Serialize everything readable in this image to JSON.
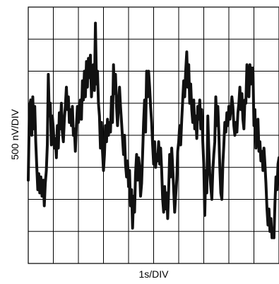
{
  "chart_data": {
    "type": "line",
    "xlabel": "1s/DIV",
    "ylabel": "500 nV/DIV",
    "x_divisions": 10,
    "y_divisions": 8,
    "xlim": [
      0,
      10
    ],
    "ylim": [
      -4,
      4
    ],
    "x_unit": "s",
    "y_unit": "nV",
    "x_scale": "1s per division",
    "y_scale": "500 nV per division",
    "grid": true,
    "line_color": "#111111",
    "series": [
      {
        "values": [
          [
            0.0,
            -1.4
          ],
          [
            0.05,
            0.9
          ],
          [
            0.1,
            1.1
          ],
          [
            0.14,
            0.0
          ],
          [
            0.18,
            1.2
          ],
          [
            0.22,
            0.2
          ],
          [
            0.26,
            0.9
          ],
          [
            0.3,
            -0.2
          ],
          [
            0.34,
            -1.0
          ],
          [
            0.38,
            -1.7
          ],
          [
            0.42,
            -1.2
          ],
          [
            0.46,
            -1.8
          ],
          [
            0.5,
            -1.3
          ],
          [
            0.55,
            -1.9
          ],
          [
            0.6,
            -1.4
          ],
          [
            0.64,
            -2.2
          ],
          [
            0.68,
            -1.5
          ],
          [
            0.72,
            -1.1
          ],
          [
            0.76,
            -0.3
          ],
          [
            0.8,
            1.9
          ],
          [
            0.84,
            0.6
          ],
          [
            0.88,
            1.0
          ],
          [
            0.92,
            -0.3
          ],
          [
            0.96,
            0.6
          ],
          [
            1.0,
            0.2
          ],
          [
            1.04,
            -0.4
          ],
          [
            1.08,
            -0.1
          ],
          [
            1.12,
            -0.7
          ],
          [
            1.16,
            0.3
          ],
          [
            1.2,
            -0.4
          ],
          [
            1.24,
            0.7
          ],
          [
            1.28,
            0.2
          ],
          [
            1.32,
            1.0
          ],
          [
            1.36,
            0.1
          ],
          [
            1.4,
            -0.2
          ],
          [
            1.44,
            0.5
          ],
          [
            1.48,
            0.9
          ],
          [
            1.52,
            1.5
          ],
          [
            1.56,
            0.8
          ],
          [
            1.6,
            1.2
          ],
          [
            1.64,
            0.4
          ],
          [
            1.68,
            0.8
          ],
          [
            1.72,
            0.3
          ],
          [
            1.76,
            0.9
          ],
          [
            1.8,
            0.0
          ],
          [
            1.84,
            0.2
          ],
          [
            1.88,
            -0.5
          ],
          [
            1.92,
            0.3
          ],
          [
            1.96,
            0.9
          ],
          [
            2.0,
            0.4
          ],
          [
            2.04,
            0.6
          ],
          [
            2.08,
            1.1
          ],
          [
            2.12,
            0.5
          ],
          [
            2.16,
            1.7
          ],
          [
            2.2,
            1.1
          ],
          [
            2.24,
            2.0
          ],
          [
            2.28,
            1.2
          ],
          [
            2.32,
            2.3
          ],
          [
            2.36,
            1.5
          ],
          [
            2.4,
            2.4
          ],
          [
            2.44,
            1.8
          ],
          [
            2.48,
            2.5
          ],
          [
            2.52,
            1.2
          ],
          [
            2.56,
            1.8
          ],
          [
            2.6,
            2.2
          ],
          [
            2.64,
            1.4
          ],
          [
            2.68,
            3.5
          ],
          [
            2.72,
            1.6
          ],
          [
            2.76,
            2.0
          ],
          [
            2.8,
            1.0
          ],
          [
            2.84,
            0.6
          ],
          [
            2.88,
            -0.4
          ],
          [
            2.92,
            0.4
          ],
          [
            2.96,
            -0.5
          ],
          [
            3.0,
            -1.1
          ],
          [
            3.04,
            -0.6
          ],
          [
            3.08,
            0.3
          ],
          [
            3.12,
            -0.2
          ],
          [
            3.16,
            0.5
          ],
          [
            3.2,
            0.0
          ],
          [
            3.24,
            0.4
          ],
          [
            3.28,
            0.1
          ],
          [
            3.32,
            1.2
          ],
          [
            3.36,
            0.4
          ],
          [
            3.4,
            2.2
          ],
          [
            3.44,
            1.3
          ],
          [
            3.48,
            1.9
          ],
          [
            3.52,
            0.9
          ],
          [
            3.56,
            0.3
          ],
          [
            3.6,
            1.0
          ],
          [
            3.64,
            1.5
          ],
          [
            3.68,
            0.9
          ],
          [
            3.72,
            0.4
          ],
          [
            3.76,
            -0.1
          ],
          [
            3.8,
            -0.6
          ],
          [
            3.84,
            0.0
          ],
          [
            3.88,
            -0.9
          ],
          [
            3.92,
            -1.3
          ],
          [
            3.96,
            -0.8
          ],
          [
            4.0,
            -1.6
          ],
          [
            4.04,
            -1.1
          ],
          [
            4.08,
            -2.2
          ],
          [
            4.12,
            -1.7
          ],
          [
            4.16,
            -2.9
          ],
          [
            4.2,
            -1.9
          ],
          [
            4.24,
            -2.4
          ],
          [
            4.28,
            -1.2
          ],
          [
            4.32,
            -0.6
          ],
          [
            4.36,
            -1.4
          ],
          [
            4.4,
            -0.7
          ],
          [
            4.44,
            -1.0
          ],
          [
            4.48,
            -1.9
          ],
          [
            4.52,
            -1.5
          ],
          [
            4.56,
            -0.6
          ],
          [
            4.6,
            0.4
          ],
          [
            4.64,
            1.1
          ],
          [
            4.68,
            0.1
          ],
          [
            4.72,
            2.0
          ],
          [
            4.76,
            1.2
          ],
          [
            4.8,
            2.0
          ],
          [
            4.84,
            1.5
          ],
          [
            4.88,
            0.9
          ],
          [
            4.92,
            0.4
          ],
          [
            4.96,
            -0.3
          ],
          [
            5.0,
            -0.9
          ],
          [
            5.04,
            -0.2
          ],
          [
            5.08,
            -1.0
          ],
          [
            5.12,
            -0.6
          ],
          [
            5.16,
            -0.8
          ],
          [
            5.2,
            -0.2
          ],
          [
            5.24,
            -0.9
          ],
          [
            5.28,
            -0.4
          ],
          [
            5.32,
            -1.1
          ],
          [
            5.36,
            -2.0
          ],
          [
            5.4,
            -2.4
          ],
          [
            5.44,
            -1.6
          ],
          [
            5.48,
            -2.3
          ],
          [
            5.52,
            -1.8
          ],
          [
            5.56,
            -2.6
          ],
          [
            5.6,
            -1.7
          ],
          [
            5.64,
            -0.6
          ],
          [
            5.68,
            -1.3
          ],
          [
            5.72,
            -0.4
          ],
          [
            5.76,
            -1.0
          ],
          [
            5.8,
            -1.7
          ],
          [
            5.84,
            -2.4
          ],
          [
            5.88,
            -1.9
          ],
          [
            5.92,
            -1.4
          ],
          [
            5.96,
            -0.5
          ],
          [
            6.0,
            -0.2
          ],
          [
            6.04,
            0.3
          ],
          [
            6.08,
            -0.3
          ],
          [
            6.12,
            0.5
          ],
          [
            6.16,
            1.1
          ],
          [
            6.2,
            1.7
          ],
          [
            6.24,
            1.2
          ],
          [
            6.28,
            2.0
          ],
          [
            6.32,
            2.6
          ],
          [
            6.36,
            1.5
          ],
          [
            6.4,
            2.2
          ],
          [
            6.44,
            1.0
          ],
          [
            6.48,
            1.6
          ],
          [
            6.52,
            0.8
          ],
          [
            6.56,
            0.4
          ],
          [
            6.6,
            1.1
          ],
          [
            6.64,
            0.2
          ],
          [
            6.68,
            0.6
          ],
          [
            6.72,
            -0.1
          ],
          [
            6.76,
            0.9
          ],
          [
            6.8,
            0.5
          ],
          [
            6.84,
            1.1
          ],
          [
            6.88,
            0.2
          ],
          [
            6.92,
            0.8
          ],
          [
            6.96,
            -0.2
          ],
          [
            7.0,
            -0.9
          ],
          [
            7.04,
            -2.5
          ],
          [
            7.08,
            -1.1
          ],
          [
            7.12,
            -1.8
          ],
          [
            7.16,
            0.6
          ],
          [
            7.2,
            -0.4
          ],
          [
            7.24,
            -1.2
          ],
          [
            7.28,
            -1.6
          ],
          [
            7.32,
            -2.0
          ],
          [
            7.36,
            -1.1
          ],
          [
            7.4,
            -0.6
          ],
          [
            7.44,
            -0.2
          ],
          [
            7.48,
            1.2
          ],
          [
            7.52,
            0.3
          ],
          [
            7.56,
            0.9
          ],
          [
            7.6,
            0.1
          ],
          [
            7.64,
            -1.0
          ],
          [
            7.68,
            -1.8
          ],
          [
            7.72,
            -2.0
          ],
          [
            7.76,
            -0.9
          ],
          [
            7.8,
            -0.3
          ],
          [
            7.84,
            0.4
          ],
          [
            7.88,
            0.1
          ],
          [
            7.92,
            0.7
          ],
          [
            7.96,
            0.3
          ],
          [
            8.0,
            0.9
          ],
          [
            8.04,
            0.5
          ],
          [
            8.08,
            0.8
          ],
          [
            8.12,
            1.2
          ],
          [
            8.16,
            0.9
          ],
          [
            8.2,
            0.3
          ],
          [
            8.24,
            0.0
          ],
          [
            8.28,
            0.4
          ],
          [
            8.32,
            0.1
          ],
          [
            8.36,
            0.7
          ],
          [
            8.4,
            1.0
          ],
          [
            8.44,
            1.5
          ],
          [
            8.48,
            0.8
          ],
          [
            8.52,
            1.3
          ],
          [
            8.56,
            0.5
          ],
          [
            8.6,
            0.2
          ],
          [
            8.64,
            1.1
          ],
          [
            8.68,
            1.0
          ],
          [
            8.72,
            2.2
          ],
          [
            8.76,
            1.8
          ],
          [
            8.8,
            1.2
          ],
          [
            8.84,
            2.2
          ],
          [
            8.88,
            1.6
          ],
          [
            8.92,
            2.1
          ],
          [
            8.96,
            2.1
          ],
          [
            9.0,
            0.3
          ],
          [
            9.04,
            0.8
          ],
          [
            9.08,
            -0.4
          ],
          [
            9.12,
            0.1
          ],
          [
            9.16,
            0.5
          ],
          [
            9.2,
            -0.5
          ],
          [
            9.24,
            -0.2
          ],
          [
            9.28,
            -0.8
          ],
          [
            9.32,
            -0.5
          ],
          [
            9.36,
            -1.1
          ],
          [
            9.4,
            -0.4
          ],
          [
            9.44,
            -0.9
          ],
          [
            9.48,
            -1.5
          ],
          [
            9.52,
            -2.3
          ],
          [
            9.56,
            -2.8
          ],
          [
            9.6,
            -2.3
          ],
          [
            9.64,
            -3.0
          ],
          [
            9.68,
            -2.6
          ],
          [
            9.72,
            -3.2
          ],
          [
            9.76,
            -2.9
          ],
          [
            9.8,
            -3.2
          ],
          [
            9.84,
            -2.1
          ],
          [
            9.88,
            -1.3
          ],
          [
            9.92,
            -1.7
          ],
          [
            9.96,
            -0.9
          ],
          [
            10.0,
            -0.7
          ]
        ]
      }
    ]
  }
}
